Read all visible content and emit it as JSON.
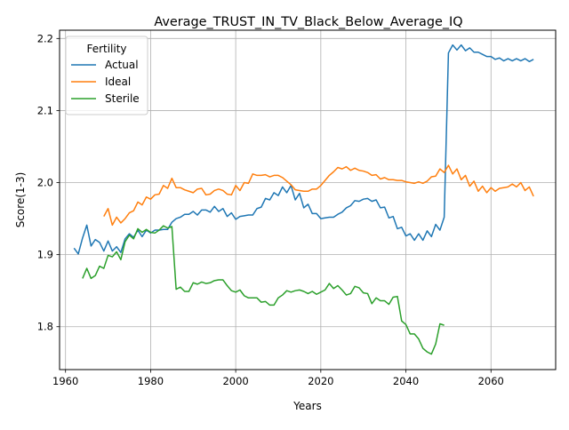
{
  "chart_data": {
    "type": "line",
    "title": "Average_TRUST_IN_TV_Black_Below_Average_IQ",
    "xlabel": "Years",
    "ylabel": "Score(1-3)",
    "xlim": [
      1958.6,
      2075.2
    ],
    "ylim": [
      1.7405,
      2.2115
    ],
    "x_ticks": [
      1960,
      1980,
      2000,
      2020,
      2040,
      2060
    ],
    "y_ticks": [
      1.8,
      1.9,
      2.0,
      2.1,
      2.2
    ],
    "x_tick_labels": [
      "1960",
      "1980",
      "2000",
      "2020",
      "2040",
      "2060"
    ],
    "y_tick_labels": [
      "1.8",
      "1.9",
      "2.0",
      "2.1",
      "2.2"
    ],
    "grid": true,
    "legend": {
      "title": "Fertility",
      "position": "top-left"
    },
    "series": [
      {
        "name": "Actual",
        "color": "#1f77b4",
        "x_start": 1962,
        "values": [
          1.909,
          1.901,
          1.923,
          1.941,
          1.912,
          1.921,
          1.917,
          1.905,
          1.919,
          1.905,
          1.911,
          1.903,
          1.922,
          1.929,
          1.924,
          1.934,
          1.925,
          1.934,
          1.93,
          1.934,
          1.934,
          1.935,
          1.935,
          1.945,
          1.95,
          1.952,
          1.956,
          1.956,
          1.96,
          1.955,
          1.962,
          1.962,
          1.959,
          1.967,
          1.96,
          1.964,
          1.953,
          1.958,
          1.949,
          1.953,
          1.954,
          1.955,
          1.955,
          1.964,
          1.966,
          1.978,
          1.976,
          1.986,
          1.982,
          1.994,
          1.986,
          1.996,
          1.976,
          1.985,
          1.965,
          1.97,
          1.957,
          1.957,
          1.95,
          1.951,
          1.952,
          1.952,
          1.956,
          1.959,
          1.965,
          1.968,
          1.975,
          1.974,
          1.977,
          1.978,
          1.974,
          1.976,
          1.965,
          1.966,
          1.951,
          1.953,
          1.936,
          1.938,
          1.926,
          1.929,
          1.92,
          1.929,
          1.92,
          1.933,
          1.925,
          1.942,
          1.934,
          1.952,
          2.18,
          2.191,
          2.184,
          2.191,
          2.183,
          2.187,
          2.181,
          2.181,
          2.178,
          2.175,
          2.175,
          2.171,
          2.173,
          2.169,
          2.172,
          2.169,
          2.172,
          2.169,
          2.172,
          2.168,
          2.171
        ]
      },
      {
        "name": "Ideal",
        "color": "#ff7f0e",
        "x_start": 1969,
        "values": [
          1.953,
          1.964,
          1.941,
          1.952,
          1.944,
          1.95,
          1.958,
          1.961,
          1.973,
          1.969,
          1.98,
          1.977,
          1.983,
          1.984,
          1.996,
          1.992,
          2.006,
          1.993,
          1.993,
          1.99,
          1.988,
          1.986,
          1.991,
          1.992,
          1.983,
          1.984,
          1.989,
          1.991,
          1.989,
          1.984,
          1.983,
          1.996,
          1.989,
          2.0,
          1.999,
          2.012,
          2.01,
          2.01,
          2.011,
          2.008,
          2.01,
          2.01,
          2.007,
          2.002,
          1.997,
          1.99,
          1.989,
          1.988,
          1.988,
          1.991,
          1.991,
          1.996,
          2.003,
          2.01,
          2.015,
          2.021,
          2.019,
          2.022,
          2.017,
          2.02,
          2.017,
          2.016,
          2.014,
          2.01,
          2.011,
          2.005,
          2.007,
          2.004,
          2.004,
          2.003,
          2.003,
          2.001,
          2.0,
          1.999,
          2.001,
          1.999,
          2.002,
          2.008,
          2.009,
          2.019,
          2.014,
          2.024,
          2.012,
          2.019,
          2.004,
          2.01,
          1.995,
          2.002,
          1.988,
          1.995,
          1.986,
          1.993,
          1.988,
          1.992,
          1.993,
          1.994,
          1.998,
          1.994,
          2.0,
          1.989,
          1.994,
          1.981
        ]
      },
      {
        "name": "Sterile",
        "color": "#2ca02c",
        "x_start": 1964,
        "values": [
          1.867,
          1.881,
          1.867,
          1.871,
          1.884,
          1.881,
          1.899,
          1.897,
          1.904,
          1.893,
          1.918,
          1.927,
          1.922,
          1.936,
          1.931,
          1.935,
          1.931,
          1.93,
          1.934,
          1.94,
          1.937,
          1.939,
          1.852,
          1.855,
          1.849,
          1.849,
          1.861,
          1.859,
          1.862,
          1.86,
          1.861,
          1.864,
          1.865,
          1.865,
          1.857,
          1.85,
          1.848,
          1.851,
          1.843,
          1.84,
          1.84,
          1.84,
          1.834,
          1.835,
          1.83,
          1.83,
          1.84,
          1.844,
          1.85,
          1.848,
          1.85,
          1.851,
          1.849,
          1.846,
          1.849,
          1.845,
          1.848,
          1.851,
          1.86,
          1.853,
          1.857,
          1.851,
          1.844,
          1.846,
          1.856,
          1.854,
          1.847,
          1.846,
          1.832,
          1.84,
          1.836,
          1.836,
          1.831,
          1.841,
          1.842,
          1.808,
          1.803,
          1.79,
          1.79,
          1.783,
          1.77,
          1.765,
          1.762,
          1.776,
          1.804,
          1.802
        ]
      }
    ]
  }
}
